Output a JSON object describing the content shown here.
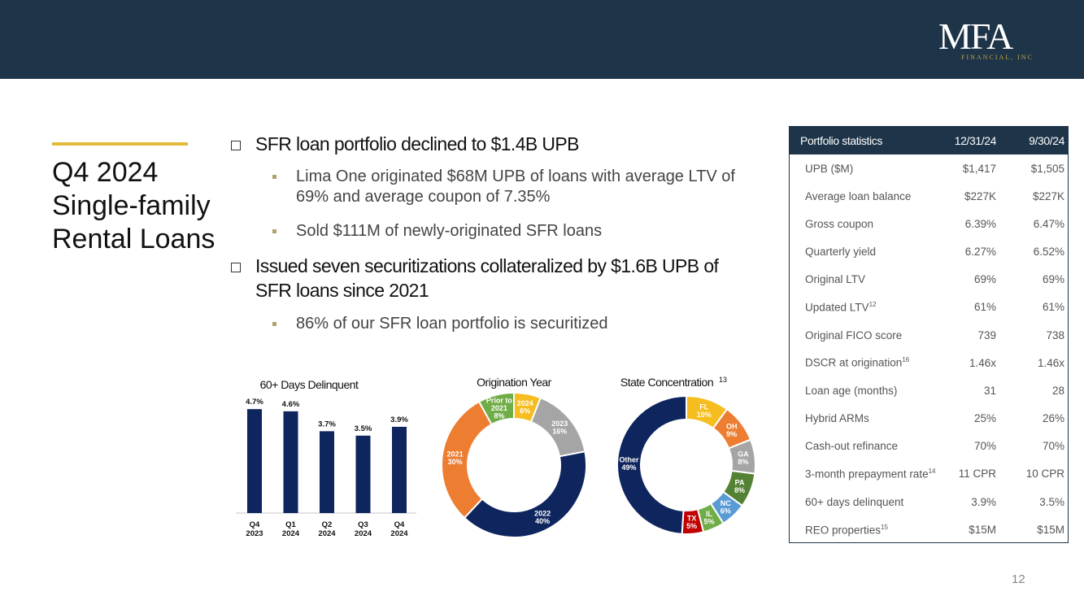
{
  "header": {
    "logo_main": "MFA",
    "logo_sub": "FINANCIAL, INC"
  },
  "title": {
    "line1": "Q4 2024",
    "line2": "Single-family",
    "line3": "Rental Loans"
  },
  "bullets": [
    {
      "text": "SFR loan portfolio declined to $1.4B UPB",
      "subs": [
        "Lima One originated $68M UPB of loans with average LTV of 69% and average coupon of 7.35%",
        "Sold $111M of newly-originated SFR loans"
      ]
    },
    {
      "text": "Issued seven securitizations collateralized by $1.6B UPB of SFR loans since 2021",
      "subs": [
        "86% of our SFR loan portfolio is securitized"
      ]
    }
  ],
  "chart_data": [
    {
      "type": "bar",
      "title": "60+ Days Delinquent",
      "categories": [
        "Q4 2023",
        "Q1 2024",
        "Q2 2024",
        "Q3 2024",
        "Q4 2024"
      ],
      "values": [
        4.7,
        4.6,
        3.7,
        3.5,
        3.9
      ],
      "labels": [
        "4.7%",
        "4.6%",
        "3.7%",
        "3.5%",
        "3.9%"
      ],
      "ylim": [
        0,
        5
      ],
      "color": "#0f255e"
    },
    {
      "type": "pie",
      "title": "Origination Year",
      "slices": [
        {
          "label": "2024",
          "value": 6,
          "text": "6%",
          "color": "#f5bd1f"
        },
        {
          "label": "2023",
          "value": 16,
          "text": "16%",
          "color": "#a5a5a5"
        },
        {
          "label": "2022",
          "value": 40,
          "text": "40%",
          "color": "#0f255e"
        },
        {
          "label": "2021",
          "value": 30,
          "text": "30%",
          "color": "#ed7d31"
        },
        {
          "label": "Prior to 2021",
          "value": 8,
          "text": "8%",
          "color": "#70ad47"
        }
      ]
    },
    {
      "type": "pie",
      "title": "State Concentration",
      "title_sup": "13",
      "slices": [
        {
          "label": "FL",
          "value": 10,
          "text": "10%",
          "color": "#f5bd1f"
        },
        {
          "label": "OH",
          "value": 9,
          "text": "9%",
          "color": "#ed7d31"
        },
        {
          "label": "GA",
          "value": 8,
          "text": "8%",
          "color": "#a5a5a5"
        },
        {
          "label": "PA",
          "value": 8,
          "text": "8%",
          "color": "#548235"
        },
        {
          "label": "NC",
          "value": 6,
          "text": "6%",
          "color": "#5b9bd5"
        },
        {
          "label": "IL",
          "value": 5,
          "text": "5%",
          "color": "#70ad47"
        },
        {
          "label": "TX",
          "value": 5,
          "text": "5%",
          "color": "#c00000"
        },
        {
          "label": "Other",
          "value": 49,
          "text": "49%",
          "color": "#0f255e"
        }
      ]
    }
  ],
  "stats": {
    "headers": [
      "Portfolio statistics",
      "12/31/24",
      "9/30/24"
    ],
    "rows": [
      {
        "label": "UPB ($M)",
        "sup": "",
        "v1": "$1,417",
        "v2": "$1,505"
      },
      {
        "label": "Average loan balance",
        "sup": "",
        "v1": "$227K",
        "v2": "$227K"
      },
      {
        "label": "Gross coupon",
        "sup": "",
        "v1": "6.39%",
        "v2": "6.47%"
      },
      {
        "label": "Quarterly yield",
        "sup": "",
        "v1": "6.27%",
        "v2": "6.52%"
      },
      {
        "label": "Original LTV",
        "sup": "",
        "v1": "69%",
        "v2": "69%"
      },
      {
        "label": "Updated LTV",
        "sup": "12",
        "v1": "61%",
        "v2": "61%"
      },
      {
        "label": "Original FICO score",
        "sup": "",
        "v1": "739",
        "v2": "738"
      },
      {
        "label": "DSCR at origination",
        "sup": "16",
        "v1": "1.46x",
        "v2": "1.46x"
      },
      {
        "label": "Loan age (months)",
        "sup": "",
        "v1": "31",
        "v2": "28"
      },
      {
        "label": "Hybrid ARMs",
        "sup": "",
        "v1": "25%",
        "v2": "26%"
      },
      {
        "label": "Cash-out refinance",
        "sup": "",
        "v1": "70%",
        "v2": "70%"
      },
      {
        "label": "3-month prepayment rate",
        "sup": "14",
        "v1": "11 CPR",
        "v2": "10 CPR"
      },
      {
        "label": "60+ days delinquent",
        "sup": "",
        "v1": "3.9%",
        "v2": "3.5%"
      },
      {
        "label": "REO properties",
        "sup": "15",
        "v1": "$15M",
        "v2": "$15M"
      }
    ]
  },
  "page_number": "12",
  "colors": {
    "header_bg": "#1d3449",
    "gold": "#e2b93b",
    "navy": "#0f255e"
  }
}
